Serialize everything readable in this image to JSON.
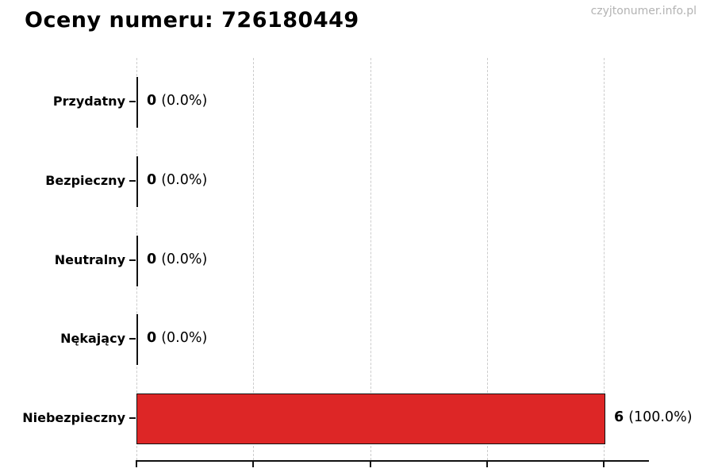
{
  "page": {
    "title": "Oceny numeru: 726180449",
    "watermark": "czyjtonumer.info.pl"
  },
  "chart_data": {
    "type": "bar",
    "orientation": "horizontal",
    "title": "Oceny numeru: 726180449",
    "categories": [
      "Przydatny",
      "Bezpieczny",
      "Neutralny",
      "Nękający",
      "Niebezpieczny"
    ],
    "values": [
      0,
      0,
      0,
      0,
      6
    ],
    "value_labels": [
      "0",
      "0",
      "0",
      "0",
      "6"
    ],
    "percent_labels": [
      "(0.0%)",
      "(0.0%)",
      "(0.0%)",
      "(0.0%)",
      "(100.0%)"
    ],
    "xlim": [
      0,
      6.6
    ],
    "xticks": [
      0,
      1.5,
      3,
      4.5,
      6
    ],
    "xtick_labels_visible": false,
    "grid": "vertical-dashed",
    "legend": "none",
    "bar_color": "#dd2626",
    "bar_edge_color": "#111111",
    "gridline_color": "#cccccc",
    "axis_color": "#111111",
    "text_color": "#000000",
    "watermark_color": "#b3b3b3"
  }
}
